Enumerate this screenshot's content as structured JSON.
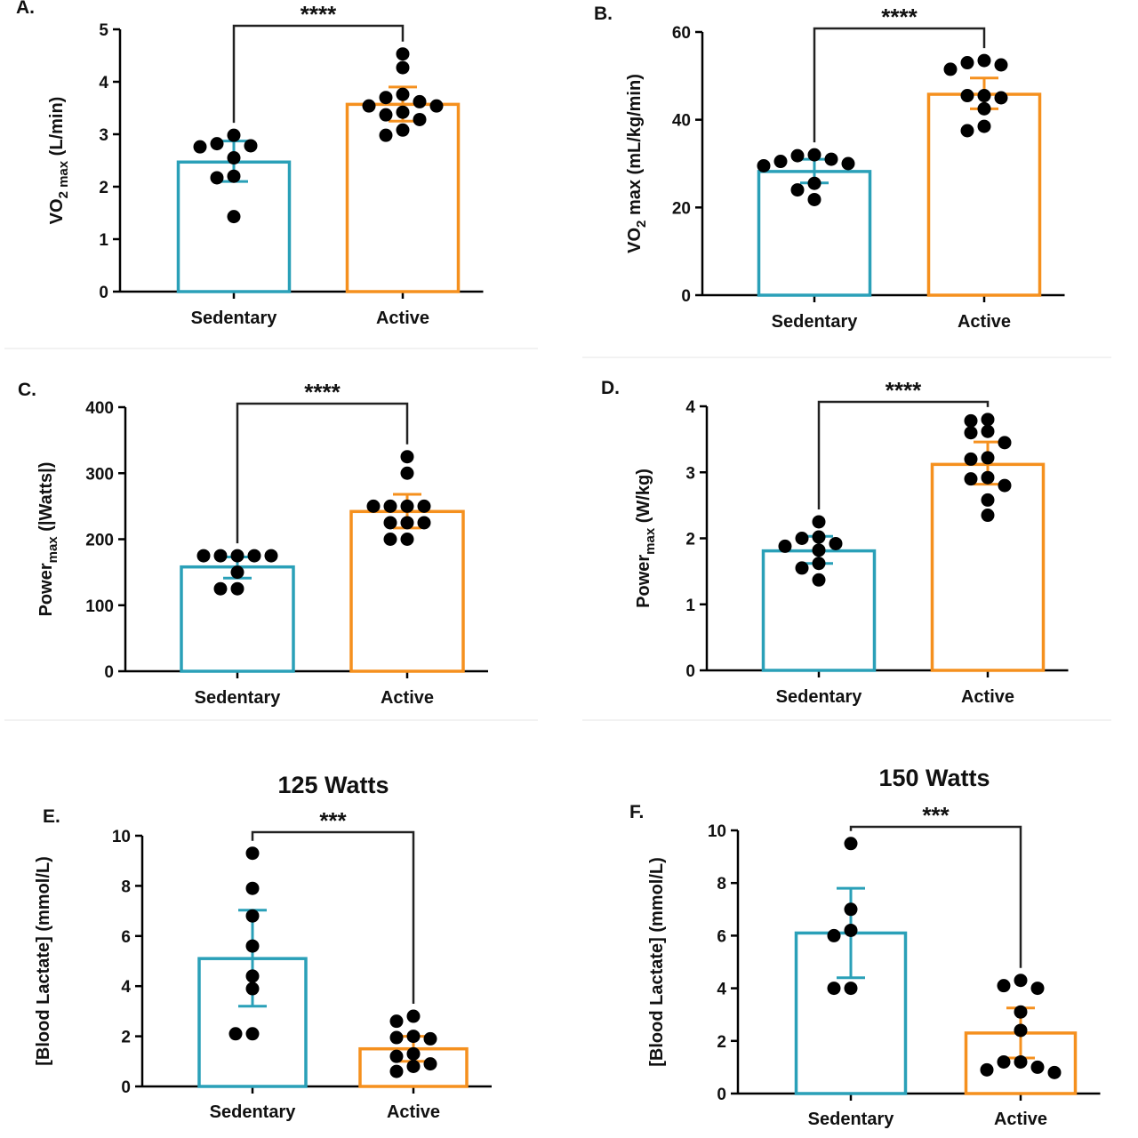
{
  "colors": {
    "sedentary": "#2aa0b8",
    "active": "#f5901e",
    "dots": "#000000",
    "axis": "#000000"
  },
  "chart_data": [
    {
      "id": "A",
      "type": "bar",
      "panel_label": "A.",
      "title": "",
      "ylabel_main": "VO",
      "ylabel_sub": "2 max",
      "ylabel_rest": " (L/min)",
      "categories": [
        "Sedentary",
        "Active"
      ],
      "ylim": [
        0,
        5
      ],
      "yticks": [
        "0",
        "1",
        "2",
        "3",
        "4",
        "5"
      ],
      "significance": "****",
      "series": [
        {
          "name": "Sedentary",
          "mean": 2.47,
          "sd_low": 2.1,
          "sd_high": 2.87,
          "points": [
            2.98,
            2.82,
            2.76,
            2.78,
            2.55,
            2.17,
            2.2,
            1.43
          ]
        },
        {
          "name": "Active",
          "mean": 3.57,
          "sd_low": 3.25,
          "sd_high": 3.9,
          "points": [
            4.53,
            4.27,
            3.76,
            3.7,
            3.62,
            3.54,
            3.54,
            3.42,
            3.37,
            3.28,
            3.08,
            2.98
          ]
        }
      ]
    },
    {
      "id": "B",
      "type": "bar",
      "panel_label": "B.",
      "title": "",
      "ylabel_main": "VO",
      "ylabel_sub": "2",
      "ylabel_rest": " max (mL/kg/min)",
      "categories": [
        "Sedentary",
        "Active"
      ],
      "ylim": [
        0,
        60
      ],
      "yticks": [
        "0",
        "20",
        "40",
        "60"
      ],
      "significance": "****",
      "series": [
        {
          "name": "Sedentary",
          "mean": 28.2,
          "sd_low": 25.6,
          "sd_high": 31.0,
          "points": [
            32.0,
            31.8,
            31.0,
            30.5,
            30.0,
            29.5,
            25.5,
            24.0,
            21.8
          ]
        },
        {
          "name": "Active",
          "mean": 45.8,
          "sd_low": 42.5,
          "sd_high": 49.5,
          "points": [
            53.5,
            53.0,
            52.5,
            51.5,
            45.5,
            45.5,
            45.0,
            42.5,
            38.5,
            37.5
          ]
        }
      ]
    },
    {
      "id": "C",
      "type": "bar",
      "panel_label": "C.",
      "title": "",
      "ylabel_main": "Power",
      "ylabel_sub": "max",
      "ylabel_rest": " (|Watts|)",
      "categories": [
        "Sedentary",
        "Active"
      ],
      "ylim": [
        0,
        400
      ],
      "yticks": [
        "0",
        "100",
        "200",
        "300",
        "400"
      ],
      "significance": "****",
      "series": [
        {
          "name": "Sedentary",
          "mean": 158,
          "sd_low": 141,
          "sd_high": 173,
          "points": [
            175,
            175,
            175,
            175,
            175,
            150,
            125,
            125
          ]
        },
        {
          "name": "Active",
          "mean": 242,
          "sd_low": 217,
          "sd_high": 268,
          "points": [
            325,
            300,
            250,
            250,
            250,
            250,
            225,
            225,
            225,
            200,
            200
          ]
        }
      ]
    },
    {
      "id": "D",
      "type": "bar",
      "panel_label": "D.",
      "title": "",
      "ylabel_main": "Power",
      "ylabel_sub": "max",
      "ylabel_rest": " (W/kg)",
      "categories": [
        "Sedentary",
        "Active"
      ],
      "ylim": [
        0,
        4
      ],
      "yticks": [
        "0",
        "1",
        "2",
        "3",
        "4"
      ],
      "significance": "****",
      "series": [
        {
          "name": "Sedentary",
          "mean": 1.81,
          "sd_low": 1.62,
          "sd_high": 2.03,
          "points": [
            2.25,
            2.02,
            2.0,
            1.92,
            1.88,
            1.82,
            1.62,
            1.55,
            1.37
          ]
        },
        {
          "name": "Active",
          "mean": 3.12,
          "sd_low": 2.82,
          "sd_high": 3.46,
          "points": [
            3.8,
            3.78,
            3.62,
            3.6,
            3.45,
            3.22,
            3.2,
            2.92,
            2.9,
            2.8,
            2.58,
            2.35
          ]
        }
      ]
    },
    {
      "id": "E",
      "type": "bar",
      "panel_label": "E.",
      "title": "125 Watts",
      "ylabel_main": "[Blood Lactate] (mmol/L)",
      "ylabel_sub": "",
      "ylabel_rest": "",
      "categories": [
        "Sedentary",
        "Active"
      ],
      "ylim": [
        0,
        10
      ],
      "yticks": [
        "0",
        "2",
        "4",
        "6",
        "8",
        "10"
      ],
      "significance": "***",
      "series": [
        {
          "name": "Sedentary",
          "mean": 5.1,
          "sd_low": 3.2,
          "sd_high": 7.03,
          "points": [
            9.3,
            7.9,
            6.8,
            5.6,
            4.4,
            3.9,
            2.1,
            2.1
          ]
        },
        {
          "name": "Active",
          "mean": 1.5,
          "sd_low": 1.0,
          "sd_high": 2.0,
          "points": [
            2.8,
            2.6,
            2.0,
            1.9,
            1.95,
            1.3,
            1.2,
            0.9,
            0.8,
            0.6
          ]
        }
      ]
    },
    {
      "id": "F",
      "type": "bar",
      "panel_label": "F.",
      "title": "150 Watts",
      "ylabel_main": "[Blood Lactate] (mmol/L)",
      "ylabel_sub": "",
      "ylabel_rest": "",
      "categories": [
        "Sedentary",
        "Active"
      ],
      "ylim": [
        0,
        10
      ],
      "yticks": [
        "0",
        "2",
        "4",
        "6",
        "8",
        "10"
      ],
      "significance": "***",
      "series": [
        {
          "name": "Sedentary",
          "mean": 6.1,
          "sd_low": 4.4,
          "sd_high": 7.8,
          "points": [
            9.5,
            7.0,
            6.2,
            6.0,
            4.0,
            4.0
          ]
        },
        {
          "name": "Active",
          "mean": 2.3,
          "sd_low": 1.35,
          "sd_high": 3.25,
          "points": [
            4.3,
            4.1,
            4.0,
            3.1,
            2.4,
            1.2,
            1.2,
            1.0,
            0.9,
            0.8
          ]
        }
      ]
    }
  ]
}
